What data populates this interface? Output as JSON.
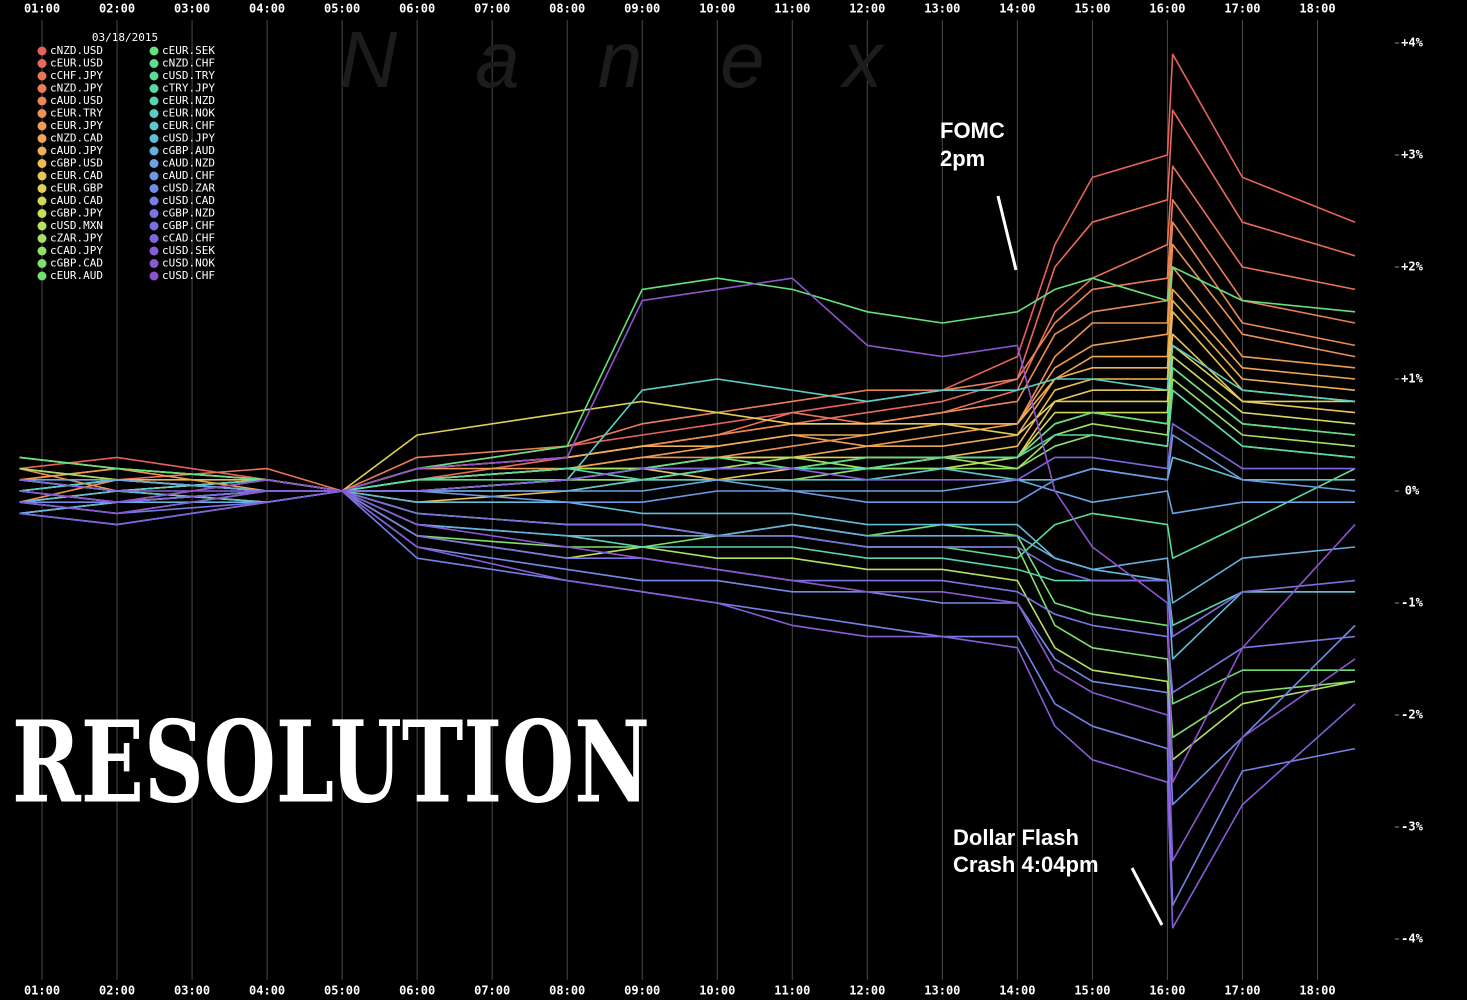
{
  "chart_data": {
    "type": "line",
    "date": "03/18/2015",
    "watermark": "Nanex",
    "banner": "RESOLUTION",
    "annotations": [
      "FOMC",
      "2pm",
      "Dollar Flash",
      "Crash 4:04pm"
    ],
    "x": [
      0.7,
      2,
      4,
      5,
      6,
      8,
      9,
      10,
      11,
      12,
      13,
      14,
      14.5,
      15,
      16,
      16.07,
      17,
      18.5
    ],
    "xlim": [
      0.68,
      18.5
    ],
    "xticks": [
      {
        "value": 1,
        "label": "01:00"
      },
      {
        "value": 2,
        "label": "02:00"
      },
      {
        "value": 3,
        "label": "03:00"
      },
      {
        "value": 4,
        "label": "04:00"
      },
      {
        "value": 5,
        "label": "05:00"
      },
      {
        "value": 6,
        "label": "06:00"
      },
      {
        "value": 7,
        "label": "07:00"
      },
      {
        "value": 8,
        "label": "08:00"
      },
      {
        "value": 9,
        "label": "09:00"
      },
      {
        "value": 10,
        "label": "10:00"
      },
      {
        "value": 11,
        "label": "11:00"
      },
      {
        "value": 12,
        "label": "12:00"
      },
      {
        "value": 13,
        "label": "13:00"
      },
      {
        "value": 14,
        "label": "14:00"
      },
      {
        "value": 15,
        "label": "15:00"
      },
      {
        "value": 16,
        "label": "16:00"
      },
      {
        "value": 17,
        "label": "17:00"
      },
      {
        "value": 18,
        "label": "18:00"
      }
    ],
    "ylim": [
      -4,
      4
    ],
    "yticks": [
      {
        "value": 4,
        "label": "+4%"
      },
      {
        "value": 3,
        "label": "+3%"
      },
      {
        "value": 2,
        "label": "+2%"
      },
      {
        "value": 1,
        "label": "+1%"
      },
      {
        "value": 0,
        "label": "0%"
      },
      {
        "value": -1,
        "label": "-1%"
      },
      {
        "value": -2,
        "label": "-2%"
      },
      {
        "value": -3,
        "label": "-3%"
      },
      {
        "value": -4,
        "label": "-4%"
      }
    ],
    "grid": true,
    "series": [
      {
        "name": "cNZD.USD",
        "color": "#e8605c",
        "values": [
          0.2,
          0.3,
          0.1,
          0,
          0.2,
          0.4,
          0.5,
          0.6,
          0.7,
          0.8,
          0.9,
          1.2,
          2.2,
          2.8,
          3.0,
          3.9,
          2.8,
          2.4
        ]
      },
      {
        "name": "cEUR.USD",
        "color": "#e86a5a",
        "values": [
          0.1,
          0.2,
          0.1,
          0,
          0.1,
          0.3,
          0.4,
          0.5,
          0.6,
          0.7,
          0.8,
          1.0,
          2.0,
          2.4,
          2.6,
          3.4,
          2.4,
          2.1
        ]
      },
      {
        "name": "cCHF.JPY",
        "color": "#ea7458",
        "values": [
          0.0,
          0.1,
          0.2,
          0,
          0.2,
          0.3,
          0.4,
          0.5,
          0.7,
          0.6,
          0.7,
          0.9,
          1.6,
          1.9,
          2.2,
          2.9,
          2.0,
          1.8
        ]
      },
      {
        "name": "cNZD.JPY",
        "color": "#ea7e56",
        "values": [
          0.3,
          0.2,
          0.1,
          0,
          0.3,
          0.4,
          0.6,
          0.7,
          0.8,
          0.9,
          0.9,
          1.0,
          1.5,
          1.8,
          1.9,
          2.6,
          1.7,
          1.5
        ]
      },
      {
        "name": "cAUD.USD",
        "color": "#ec8854",
        "values": [
          -0.1,
          0.1,
          0.0,
          0,
          0.2,
          0.3,
          0.4,
          0.5,
          0.6,
          0.6,
          0.7,
          0.8,
          1.4,
          1.6,
          1.7,
          2.4,
          1.5,
          1.3
        ]
      },
      {
        "name": "cEUR.TRY",
        "color": "#ec9252",
        "values": [
          0.2,
          0.0,
          0.1,
          0,
          0.1,
          0.2,
          0.3,
          0.3,
          0.4,
          0.5,
          0.6,
          0.6,
          1.2,
          1.5,
          1.5,
          2.2,
          1.4,
          1.2
        ]
      },
      {
        "name": "cEUR.JPY",
        "color": "#ee9c52",
        "values": [
          0.1,
          0.2,
          0.0,
          0,
          0.2,
          0.2,
          0.3,
          0.4,
          0.5,
          0.4,
          0.5,
          0.6,
          1.1,
          1.3,
          1.4,
          2.0,
          1.2,
          1.1
        ]
      },
      {
        "name": "cNZD.CAD",
        "color": "#eea652",
        "values": [
          0.0,
          -0.1,
          0.1,
          0,
          0.1,
          0.2,
          0.2,
          0.3,
          0.3,
          0.4,
          0.4,
          0.5,
          1.0,
          1.2,
          1.2,
          1.8,
          1.1,
          1.0
        ]
      },
      {
        "name": "cAUD.JPY",
        "color": "#eeb052",
        "values": [
          0.2,
          0.1,
          0.1,
          0,
          0.2,
          0.3,
          0.4,
          0.4,
          0.5,
          0.5,
          0.6,
          0.6,
          1.0,
          1.1,
          1.1,
          1.7,
          1.0,
          0.9
        ]
      },
      {
        "name": "cGBP.USD",
        "color": "#ecbc54",
        "values": [
          -0.2,
          -0.1,
          0.0,
          0,
          -0.1,
          0.0,
          0.1,
          0.2,
          0.2,
          0.3,
          0.3,
          0.4,
          0.9,
          1.0,
          1.0,
          1.6,
          0.9,
          0.8
        ]
      },
      {
        "name": "cEUR.CAD",
        "color": "#e8c656",
        "values": [
          0.1,
          0.0,
          0.1,
          0,
          0.0,
          0.1,
          0.2,
          0.1,
          0.2,
          0.2,
          0.3,
          0.3,
          0.8,
          0.9,
          0.9,
          1.4,
          0.8,
          0.7
        ]
      },
      {
        "name": "cEUR.GBP",
        "color": "#e0d058",
        "values": [
          0.3,
          0.2,
          0.1,
          0,
          0.5,
          0.7,
          0.8,
          0.7,
          0.6,
          0.6,
          0.6,
          0.5,
          0.8,
          0.8,
          0.8,
          1.3,
          0.8,
          0.8
        ]
      },
      {
        "name": "cAUD.CAD",
        "color": "#d4d85a",
        "values": [
          0.0,
          0.1,
          0.0,
          0,
          0.1,
          0.2,
          0.2,
          0.3,
          0.3,
          0.3,
          0.3,
          0.3,
          0.7,
          0.7,
          0.7,
          1.2,
          0.7,
          0.6
        ]
      },
      {
        "name": "cGBP.JPY",
        "color": "#c6de5c",
        "values": [
          -0.1,
          0.0,
          0.1,
          0,
          0.0,
          0.1,
          0.1,
          0.2,
          0.2,
          0.2,
          0.2,
          0.3,
          0.6,
          0.7,
          0.6,
          1.1,
          0.6,
          0.5
        ]
      },
      {
        "name": "cUSD.MXN",
        "color": "#b6e05e",
        "values": [
          0.1,
          0.0,
          -0.1,
          0,
          -0.4,
          -0.6,
          -0.5,
          -0.6,
          -0.6,
          -0.7,
          -0.7,
          -0.8,
          -1.4,
          -1.6,
          -1.7,
          -2.4,
          -1.9,
          -1.7
        ]
      },
      {
        "name": "cZAR.JPY",
        "color": "#a4e062",
        "values": [
          0.2,
          0.1,
          0.0,
          0,
          0.1,
          0.2,
          0.2,
          0.2,
          0.3,
          0.2,
          0.3,
          0.2,
          0.5,
          0.6,
          0.5,
          1.0,
          0.5,
          0.4
        ]
      },
      {
        "name": "cCAD.JPY",
        "color": "#92e066",
        "values": [
          0.0,
          -0.1,
          0.0,
          0,
          0.0,
          0.1,
          0.1,
          0.1,
          0.1,
          0.2,
          0.2,
          0.2,
          0.4,
          0.5,
          0.4,
          0.9,
          0.4,
          0.3
        ]
      },
      {
        "name": "cGBP.CAD",
        "color": "#80e06c",
        "values": [
          -0.2,
          -0.1,
          0.0,
          0,
          -0.4,
          -0.5,
          -0.5,
          -0.4,
          -0.4,
          -0.5,
          -0.5,
          -0.5,
          -1.2,
          -1.4,
          -1.5,
          -2.2,
          -1.8,
          -1.7
        ]
      },
      {
        "name": "cEUR.AUD",
        "color": "#70e072",
        "values": [
          -0.1,
          0.0,
          -0.1,
          0,
          -0.2,
          -0.3,
          -0.3,
          -0.4,
          -0.3,
          -0.4,
          -0.3,
          -0.4,
          -1.0,
          -1.1,
          -1.2,
          -1.9,
          -1.6,
          -1.6
        ]
      },
      {
        "name": "cEUR.SEK",
        "color": "#64e07c",
        "values": [
          0.3,
          0.2,
          0.1,
          0,
          0.2,
          0.4,
          1.8,
          1.9,
          1.8,
          1.6,
          1.5,
          1.6,
          1.8,
          1.9,
          1.7,
          2.0,
          1.7,
          1.6
        ]
      },
      {
        "name": "cNZD.CHF",
        "color": "#5ede88",
        "values": [
          0.0,
          0.1,
          0.0,
          0,
          0.1,
          0.1,
          0.2,
          0.3,
          0.2,
          0.3,
          0.3,
          0.3,
          0.6,
          0.7,
          0.6,
          1.1,
          0.6,
          0.5
        ]
      },
      {
        "name": "cUSD.TRY",
        "color": "#5adc96",
        "values": [
          -0.1,
          -0.2,
          0.0,
          0,
          -0.2,
          -0.3,
          -0.3,
          -0.4,
          -0.4,
          -0.5,
          -0.5,
          -0.6,
          -0.3,
          -0.2,
          -0.3,
          -0.6,
          -0.3,
          0.2
        ]
      },
      {
        "name": "cTRY.JPY",
        "color": "#58d8a4",
        "values": [
          0.0,
          0.1,
          0.0,
          0,
          0.1,
          0.2,
          0.1,
          0.2,
          0.2,
          0.2,
          0.3,
          0.3,
          0.5,
          0.5,
          0.4,
          0.9,
          0.4,
          0.3
        ]
      },
      {
        "name": "cEUR.NZD",
        "color": "#58d4b4",
        "values": [
          -0.2,
          -0.3,
          -0.1,
          0,
          -0.3,
          -0.4,
          -0.5,
          -0.5,
          -0.5,
          -0.6,
          -0.6,
          -0.7,
          -0.8,
          -0.8,
          -0.8,
          -1.2,
          -0.9,
          -0.9
        ]
      },
      {
        "name": "cEUR.NOK",
        "color": "#5acec2",
        "values": [
          0.1,
          0.0,
          0.1,
          0,
          0.0,
          0.1,
          0.9,
          1.0,
          0.9,
          0.8,
          0.9,
          0.9,
          1.0,
          1.0,
          0.9,
          1.3,
          0.9,
          0.8
        ]
      },
      {
        "name": "cEUR.CHF",
        "color": "#5ec6ce",
        "values": [
          0.0,
          0.1,
          0.0,
          0,
          0.0,
          0.0,
          0.1,
          0.1,
          0.1,
          0.1,
          0.2,
          0.1,
          0.1,
          0.2,
          0.1,
          0.3,
          0.1,
          0.1
        ]
      },
      {
        "name": "cUSD.JPY",
        "color": "#62bcd8",
        "values": [
          -0.1,
          0.0,
          -0.1,
          0,
          -0.1,
          -0.1,
          -0.2,
          -0.2,
          -0.2,
          -0.3,
          -0.3,
          -0.3,
          -0.6,
          -0.7,
          -0.8,
          -1.5,
          -0.9,
          -0.9
        ]
      },
      {
        "name": "cGBP.AUD",
        "color": "#66b0de",
        "values": [
          -0.2,
          -0.1,
          -0.1,
          0,
          -0.3,
          -0.4,
          -0.4,
          -0.4,
          -0.3,
          -0.4,
          -0.4,
          -0.4,
          -0.6,
          -0.7,
          -0.6,
          -1.0,
          -0.6,
          -0.5
        ]
      },
      {
        "name": "cAUD.NZD",
        "color": "#6aa4e2",
        "values": [
          0.1,
          0.1,
          0.0,
          0,
          0.0,
          0.0,
          0.0,
          0.1,
          0.0,
          0.0,
          0.0,
          0.1,
          0.0,
          -0.1,
          0.0,
          -0.2,
          -0.1,
          -0.1
        ]
      },
      {
        "name": "cAUD.CHF",
        "color": "#6e98e4",
        "values": [
          0.0,
          -0.1,
          0.0,
          0,
          0.0,
          -0.1,
          -0.1,
          0.0,
          0.0,
          -0.1,
          -0.1,
          -0.1,
          0.1,
          0.2,
          0.1,
          0.5,
          0.1,
          0.0
        ]
      },
      {
        "name": "cUSD.ZAR",
        "color": "#728ce6",
        "values": [
          -0.1,
          -0.1,
          0.0,
          0,
          -0.5,
          -0.7,
          -0.8,
          -0.8,
          -0.9,
          -0.9,
          -1.0,
          -1.0,
          -1.5,
          -1.7,
          -1.8,
          -2.8,
          -2.2,
          -1.2
        ]
      },
      {
        "name": "cUSD.CAD",
        "color": "#7680e6",
        "values": [
          -0.2,
          -0.3,
          -0.1,
          0,
          -0.6,
          -0.8,
          -0.9,
          -1.0,
          -1.1,
          -1.2,
          -1.3,
          -1.3,
          -1.9,
          -2.1,
          -2.3,
          -3.7,
          -2.5,
          -2.3
        ]
      },
      {
        "name": "cGBP.NZD",
        "color": "#7a76e4",
        "values": [
          -0.1,
          -0.2,
          -0.1,
          0,
          -0.4,
          -0.6,
          -0.6,
          -0.7,
          -0.8,
          -0.8,
          -0.8,
          -0.9,
          -1.1,
          -1.2,
          -1.3,
          -1.8,
          -1.4,
          -1.3
        ]
      },
      {
        "name": "cGBP.CHF",
        "color": "#7e6ce2",
        "values": [
          0.0,
          -0.1,
          0.0,
          0,
          -0.2,
          -0.3,
          -0.3,
          -0.4,
          -0.4,
          -0.5,
          -0.5,
          -0.5,
          -0.7,
          -0.8,
          -0.8,
          -1.3,
          -0.9,
          -0.8
        ]
      },
      {
        "name": "cCAD.CHF",
        "color": "#8264de",
        "values": [
          0.1,
          0.0,
          0.0,
          0,
          0.0,
          0.1,
          0.2,
          0.2,
          0.2,
          0.1,
          0.1,
          0.1,
          0.3,
          0.3,
          0.2,
          0.6,
          0.2,
          0.2
        ]
      },
      {
        "name": "cUSD.SEK",
        "color": "#865ed8",
        "values": [
          -0.2,
          -0.3,
          -0.1,
          0,
          -0.5,
          -0.8,
          -0.9,
          -1.0,
          -1.2,
          -1.3,
          -1.3,
          -1.4,
          -2.1,
          -2.4,
          -2.6,
          -3.9,
          -2.8,
          -1.9
        ]
      },
      {
        "name": "cUSD.NOK",
        "color": "#8a58d2",
        "values": [
          -0.1,
          -0.2,
          0.0,
          0,
          -0.3,
          -0.5,
          -0.6,
          -0.7,
          -0.8,
          -0.9,
          -0.9,
          -1.0,
          -1.6,
          -1.8,
          -2.0,
          -3.3,
          -2.2,
          -1.5
        ]
      },
      {
        "name": "cUSD.CHF",
        "color": "#8e52cc",
        "values": [
          0.0,
          -0.1,
          0.1,
          0,
          0.2,
          0.3,
          1.7,
          1.8,
          1.9,
          1.3,
          1.2,
          1.3,
          0.0,
          -0.5,
          -1.0,
          -2.6,
          -1.4,
          -0.3
        ]
      }
    ]
  }
}
